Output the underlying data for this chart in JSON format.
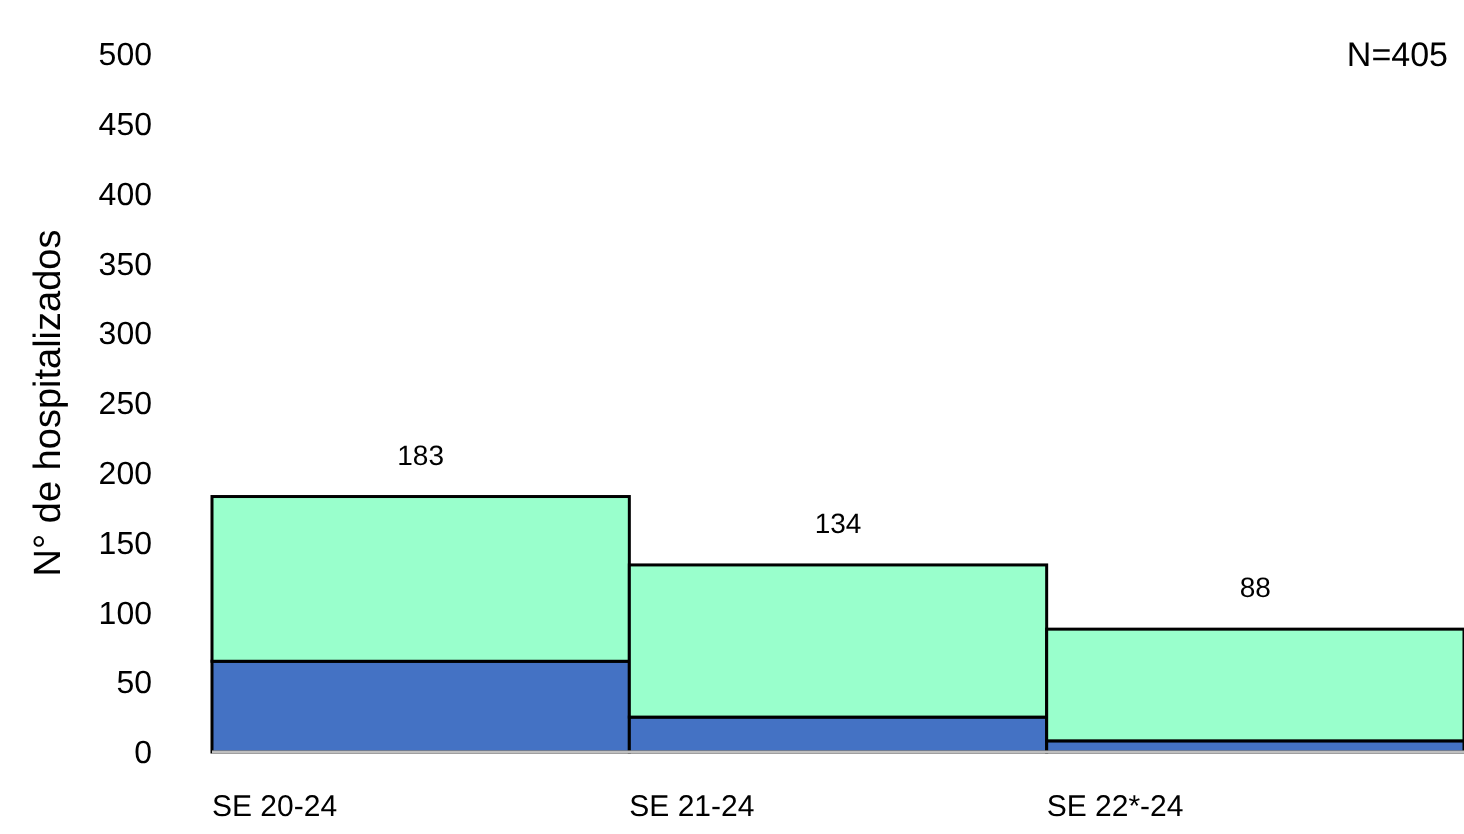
{
  "chart_data": {
    "type": "bar",
    "stacked": true,
    "ylabel": "N° de hospitalizados",
    "categories": [
      "SE 20-24",
      "SE 21-24",
      "SE 22*-24"
    ],
    "series": [
      {
        "color": "#4472c4",
        "values": [
          65,
          25,
          8
        ]
      },
      {
        "color": "#99ffcc",
        "values": [
          118,
          109,
          80
        ]
      }
    ],
    "totals": [
      "183",
      "134",
      "88"
    ],
    "ylim": [
      0,
      500
    ],
    "yticks": [
      0,
      50,
      100,
      150,
      200,
      250,
      300,
      350,
      400,
      450,
      500
    ],
    "annotations": [
      "N=405"
    ]
  }
}
